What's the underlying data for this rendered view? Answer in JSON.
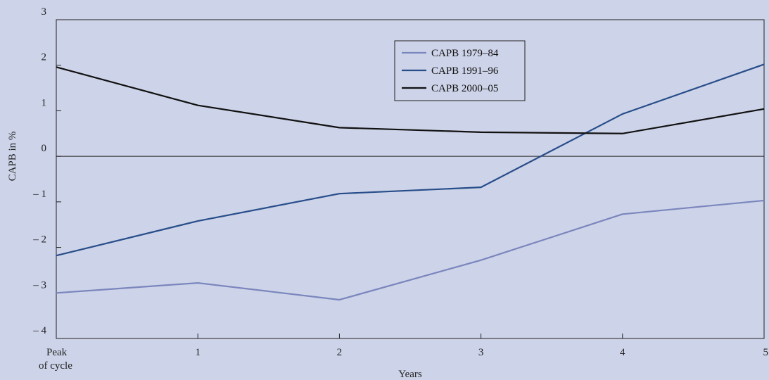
{
  "chart_data": {
    "type": "line",
    "x": [
      0,
      1,
      2,
      3,
      4,
      5
    ],
    "x_tick_labels": [
      "Peak\nof cycle",
      "1",
      "2",
      "3",
      "4",
      "5"
    ],
    "xlabel": "Years",
    "ylabel": "CAPB in %",
    "ylim": [
      -4,
      3
    ],
    "y_ticks": [
      3,
      2,
      1,
      0,
      -1,
      -2,
      -3,
      -4
    ],
    "y_tick_labels": [
      "3",
      "2",
      "1",
      "0",
      "– 1",
      "– 2",
      "– 3",
      "– 4"
    ],
    "zero_line": true,
    "grid": false,
    "legend_position": "top-center",
    "series": [
      {
        "name": "CAPB 1979–84",
        "color": "#7a86bd",
        "values": [
          -3.0,
          -2.78,
          -3.15,
          -2.28,
          -1.27,
          -0.97
        ]
      },
      {
        "name": "CAPB 1991–96",
        "color": "#274d8a",
        "values": [
          -2.18,
          -1.42,
          -0.82,
          -0.68,
          0.93,
          2.02
        ]
      },
      {
        "name": "CAPB 2000–05",
        "color": "#111111",
        "values": [
          1.96,
          1.12,
          0.63,
          0.53,
          0.5,
          1.04
        ]
      }
    ]
  }
}
